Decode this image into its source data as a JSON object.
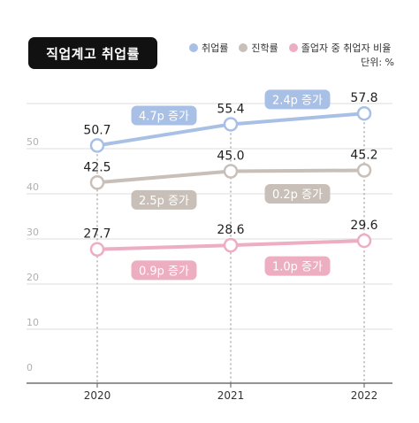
{
  "title": "직업계고 취업률",
  "unit_label": "단위: %",
  "colors": {
    "employment": "#a9c0e6",
    "advancement": "#c8c0b8",
    "combined": "#eeaec2",
    "axis": "#555555",
    "grid": "#dddddd"
  },
  "chart_data": {
    "type": "line",
    "x": [
      "2020",
      "2021",
      "2022"
    ],
    "ylim": [
      0,
      60
    ],
    "yticks": [
      0,
      10,
      20,
      30,
      40,
      50
    ],
    "grid": true,
    "legend_position": "top-right",
    "series": [
      {
        "key": "employment",
        "name": "취업률",
        "values": [
          50.7,
          55.4,
          57.8
        ]
      },
      {
        "key": "advancement",
        "name": "진학률",
        "values": [
          42.5,
          45.0,
          45.2
        ]
      },
      {
        "key": "combined",
        "name": "졸업자 중 취업자 비율",
        "values": [
          27.7,
          28.6,
          29.6
        ]
      }
    ],
    "value_labels": [
      [
        "50.7",
        "55.4",
        "57.8"
      ],
      [
        "42.5",
        "45.0",
        "45.2"
      ],
      [
        "27.7",
        "28.6",
        "29.6"
      ]
    ],
    "annotations": [
      {
        "series": "employment",
        "segment": 0,
        "text": "4.7p 증가",
        "side": "above"
      },
      {
        "series": "employment",
        "segment": 1,
        "text": "2.4p 증가",
        "side": "above"
      },
      {
        "series": "advancement",
        "segment": 0,
        "text": "2.5p 증가",
        "side": "below"
      },
      {
        "series": "advancement",
        "segment": 1,
        "text": "0.2p 증가",
        "side": "below"
      },
      {
        "series": "combined",
        "segment": 0,
        "text": "0.9p 증가",
        "side": "below"
      },
      {
        "series": "combined",
        "segment": 1,
        "text": "1.0p 증가",
        "side": "below"
      }
    ]
  }
}
